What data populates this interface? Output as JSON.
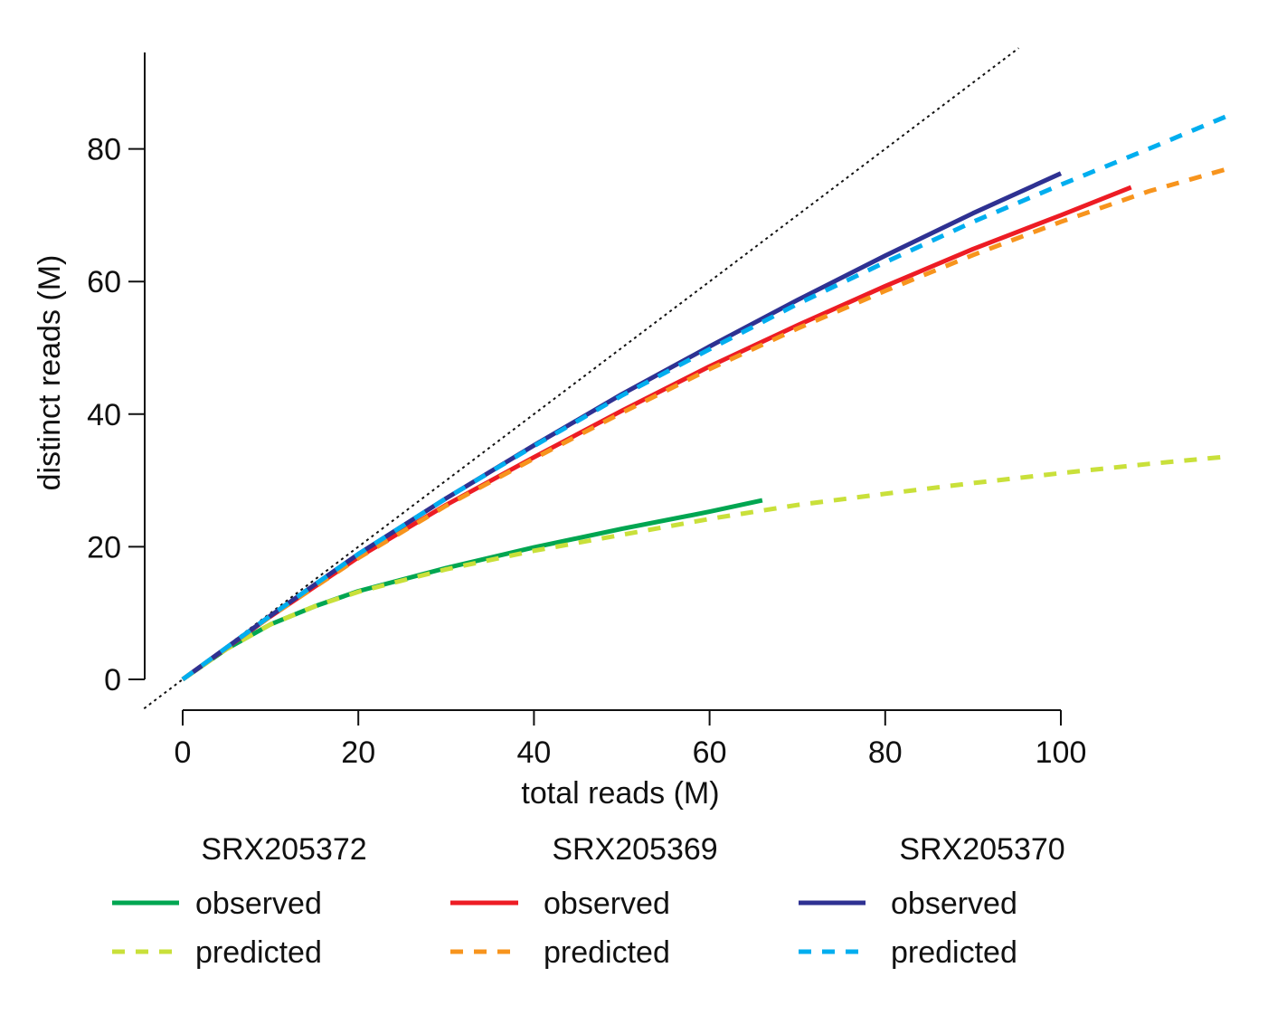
{
  "chart_data": {
    "type": "line",
    "xlabel": "total reads (M)",
    "ylabel": "distinct reads (M)",
    "xlim": [
      -4.4,
      119
    ],
    "ylim": [
      -4.5,
      94.5
    ],
    "xticks": [
      0,
      20,
      40,
      60,
      80,
      100
    ],
    "yticks": [
      0,
      20,
      40,
      60,
      80
    ],
    "xtick_labels": [
      "0",
      "20",
      "40",
      "60",
      "80",
      "100"
    ],
    "ytick_labels": [
      "0",
      "20",
      "40",
      "60",
      "80"
    ],
    "grid": false,
    "legend_position": "bottom",
    "reference_line": {
      "style": "dotted",
      "color": "#111111",
      "slope": 1,
      "intercept": 0
    },
    "groups": [
      {
        "name": "SRX205372",
        "series": [
          {
            "name": "observed",
            "style": "solid",
            "color": "#00a651",
            "x": [
              0,
              5,
              10,
              15,
              20,
              30,
              40,
              50,
              60,
              66
            ],
            "y": [
              0,
              4.6,
              8.3,
              11.0,
              13.3,
              16.8,
              19.9,
              22.7,
              25.3,
              27.0
            ]
          },
          {
            "name": "predicted",
            "style": "dashed",
            "color": "#c9e03a",
            "x": [
              0,
              5,
              10,
              15,
              20,
              30,
              40,
              50,
              60,
              70,
              80,
              90,
              100,
              110,
              119
            ],
            "y": [
              0,
              4.6,
              8.3,
              11.0,
              13.2,
              16.6,
              19.4,
              21.8,
              24.2,
              26.3,
              28.0,
              29.6,
              31.1,
              32.5,
              33.6
            ]
          }
        ]
      },
      {
        "name": "SRX205369",
        "series": [
          {
            "name": "observed",
            "style": "solid",
            "color": "#ed1c24",
            "x": [
              0,
              10,
              20,
              30,
              40,
              50,
              60,
              70,
              80,
              90,
              100,
              108
            ],
            "y": [
              0,
              9.5,
              18.4,
              26.3,
              33.5,
              40.5,
              47.2,
              53.4,
              59.3,
              64.9,
              70.0,
              74.2
            ]
          },
          {
            "name": "predicted",
            "style": "dashed",
            "color": "#f7941d",
            "x": [
              0,
              10,
              20,
              30,
              40,
              50,
              60,
              70,
              80,
              90,
              100,
              110,
              119
            ],
            "y": [
              0,
              9.5,
              18.3,
              26.2,
              33.3,
              40.2,
              46.8,
              52.9,
              58.6,
              64.0,
              69.0,
              73.6,
              77.0
            ]
          }
        ]
      },
      {
        "name": "SRX205370",
        "series": [
          {
            "name": "observed",
            "style": "solid",
            "color": "#2e3192",
            "x": [
              0,
              10,
              20,
              30,
              40,
              50,
              60,
              70,
              80,
              90,
              100
            ],
            "y": [
              0,
              9.6,
              18.9,
              27.3,
              35.3,
              43.0,
              50.2,
              57.2,
              63.9,
              70.3,
              76.3
            ]
          },
          {
            "name": "predicted",
            "style": "dashed",
            "color": "#00aeef",
            "x": [
              0,
              10,
              20,
              30,
              40,
              50,
              60,
              70,
              80,
              90,
              100,
              110,
              119
            ],
            "y": [
              0,
              9.6,
              18.9,
              27.3,
              35.2,
              42.8,
              49.8,
              56.6,
              62.9,
              69.0,
              74.6,
              80.0,
              85.0
            ]
          }
        ]
      }
    ]
  }
}
